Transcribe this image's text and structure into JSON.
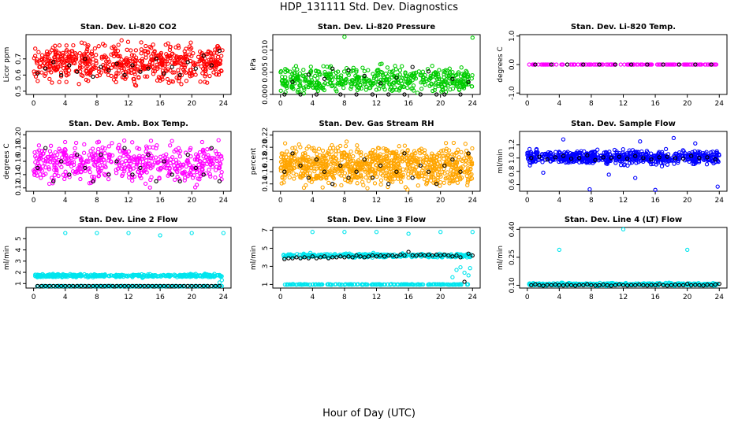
{
  "figure": {
    "title": "HDP_131111  Std. Dev. Diagnostics",
    "xlabel": "Hour of Day (UTC)"
  },
  "colors": {
    "red": "#ff0000",
    "green": "#00cc00",
    "magenta": "#ff00ff",
    "orange": "#ffa500",
    "blue": "#0000ff",
    "cyan": "#00e5ee",
    "black": "#000000"
  },
  "chart_data": [
    {
      "type": "scatter",
      "title": "Stan. Dev. Li-820 CO2",
      "ylabel": "Licor ppm",
      "xlim": [
        0,
        24
      ],
      "ylim": [
        0.48,
        0.85
      ],
      "xticks": [
        "0",
        "4",
        "8",
        "12",
        "16",
        "20",
        "24"
      ],
      "yticks": [
        "0.5",
        "0.6",
        "0.7"
      ],
      "color": "red",
      "background": {
        "count": 600,
        "band": [
          0.55,
          0.8
        ]
      },
      "series": [
        {
          "color": "black",
          "x": [
            0.5,
            1.5,
            2.5,
            3.5,
            4.5,
            5.5,
            6.5,
            7.5,
            8.5,
            9.5,
            10.5,
            11.5,
            12.5,
            13.5,
            14.5,
            15.5,
            16.5,
            17.5,
            18.5,
            19.5,
            20.5,
            21.5,
            22.5,
            23.5
          ],
          "y": [
            0.61,
            0.64,
            0.68,
            0.6,
            0.66,
            0.62,
            0.7,
            0.59,
            0.65,
            0.63,
            0.67,
            0.6,
            0.66,
            0.62,
            0.64,
            0.7,
            0.61,
            0.65,
            0.6,
            0.68,
            0.64,
            0.72,
            0.66,
            0.75
          ]
        }
      ]
    },
    {
      "type": "scatter",
      "title": "Stan. Dev. Li-820 Pressure",
      "ylabel": "kPa",
      "xlim": [
        0,
        24
      ],
      "ylim": [
        0,
        0.0135
      ],
      "xticks": [
        "0",
        "4",
        "8",
        "12",
        "16",
        "20",
        "24"
      ],
      "yticks": [
        "0.000",
        "0.005",
        "0.010"
      ],
      "color": "green",
      "background": {
        "count": 500,
        "band": [
          0.0,
          0.0065
        ]
      },
      "series": [
        {
          "color": "green",
          "x": [
            8,
            24
          ],
          "y": [
            0.013,
            0.0128
          ]
        },
        {
          "color": "black",
          "x": [
            0.5,
            1.5,
            2.5,
            3.5,
            4.5,
            5.5,
            6.5,
            7.5,
            8.5,
            9.5,
            10.5,
            11.5,
            12.5,
            13.5,
            14.5,
            15.5,
            16.5,
            17.5,
            18.5,
            19.5,
            20.5,
            21.5,
            22.5,
            23.5
          ],
          "y": [
            0.0,
            0.0028,
            0.0,
            0.0045,
            0.0,
            0.0035,
            0.0058,
            0.0,
            0.0055,
            0.0,
            0.0042,
            0.0,
            0.0025,
            0.0,
            0.0038,
            0.0,
            0.0062,
            0.0,
            0.0052,
            0.0,
            0.0,
            0.0035,
            0.0,
            0.0028
          ]
        }
      ]
    },
    {
      "type": "scatter",
      "title": "Stan. Dev. Li-820 Temp.",
      "ylabel": "degrees C",
      "xlim": [
        0,
        24
      ],
      "ylim": [
        -1.05,
        1.05
      ],
      "xticks": [
        "0",
        "4",
        "8",
        "12",
        "16",
        "20",
        "24"
      ],
      "yticks": [
        "-1.0",
        "0.0",
        "1.0"
      ],
      "color": "magenta",
      "background": {
        "count": 140,
        "band": [
          0.0,
          0.0
        ]
      },
      "series": [
        {
          "color": "black",
          "x": [
            1,
            3,
            5,
            7,
            9,
            11,
            13,
            15,
            17,
            19,
            21,
            23
          ],
          "y": [
            0,
            0,
            0,
            0,
            0,
            0,
            0,
            0,
            0,
            0,
            0,
            0
          ]
        }
      ]
    },
    {
      "type": "scatter",
      "title": "Stan. Dev. Amb. Box Temp.",
      "ylabel": "degrees C",
      "xlim": [
        0,
        24
      ],
      "ylim": [
        0.115,
        0.205
      ],
      "xticks": [
        "0",
        "4",
        "8",
        "12",
        "16",
        "20",
        "24"
      ],
      "yticks": [
        "0.12",
        "0.14",
        "0.16",
        "0.18",
        "0.20"
      ],
      "color": "magenta",
      "background": {
        "count": 520,
        "band": [
          0.125,
          0.19
        ]
      },
      "series": [
        {
          "color": "black",
          "x": [
            0.5,
            1.5,
            2.5,
            3.5,
            4.5,
            5.5,
            6.5,
            7.5,
            8.5,
            9.5,
            10.5,
            11.5,
            12.5,
            13.5,
            14.5,
            15.5,
            16.5,
            17.5,
            18.5,
            19.5,
            20.5,
            21.5,
            22.5,
            23.5
          ],
          "y": [
            0.15,
            0.18,
            0.13,
            0.16,
            0.14,
            0.17,
            0.15,
            0.13,
            0.17,
            0.14,
            0.16,
            0.18,
            0.14,
            0.15,
            0.17,
            0.13,
            0.16,
            0.14,
            0.13,
            0.17,
            0.15,
            0.14,
            0.18,
            0.13
          ]
        }
      ]
    },
    {
      "type": "scatter",
      "title": "Stan. Dev. Gas Stream RH",
      "ylabel": "percent",
      "xlim": [
        0,
        24
      ],
      "ylim": [
        0.128,
        0.226
      ],
      "xticks": [
        "0",
        "4",
        "8",
        "12",
        "16",
        "20",
        "24"
      ],
      "yticks": [
        "0.14",
        "0.16",
        "0.18",
        "0.20",
        "0.22"
      ],
      "color": "orange",
      "background": {
        "count": 900,
        "band": [
          0.135,
          0.205
        ]
      },
      "series": [
        {
          "color": "black",
          "x": [
            0.5,
            1.5,
            2.5,
            3.5,
            4.5,
            5.5,
            6.5,
            7.5,
            8.5,
            9.5,
            10.5,
            11.5,
            12.5,
            13.5,
            14.5,
            15.5,
            16.5,
            17.5,
            18.5,
            19.5,
            20.5,
            21.5,
            22.5,
            23.5
          ],
          "y": [
            0.16,
            0.19,
            0.17,
            0.15,
            0.18,
            0.16,
            0.14,
            0.17,
            0.15,
            0.16,
            0.18,
            0.15,
            0.17,
            0.14,
            0.16,
            0.19,
            0.15,
            0.17,
            0.16,
            0.14,
            0.17,
            0.18,
            0.16,
            0.19
          ]
        }
      ]
    },
    {
      "type": "scatter",
      "title": "Stan. Dev. Sample Flow",
      "ylabel": "ml/min",
      "xlim": [
        0,
        24
      ],
      "ylim": [
        0.5,
        1.4
      ],
      "xticks": [
        "0",
        "4",
        "8",
        "12",
        "16",
        "20",
        "24"
      ],
      "yticks": [
        "0.6",
        "0.8",
        "1.0",
        "1.2"
      ],
      "color": "blue",
      "background": {
        "count": 650,
        "band": [
          0.9,
          1.12
        ]
      },
      "series": [
        {
          "color": "blue",
          "x": [
            4.5,
            7.8,
            10.2,
            14.1,
            16.0,
            18.3,
            23.8,
            13.5,
            2.0,
            21.0
          ],
          "y": [
            1.28,
            0.53,
            0.75,
            1.25,
            0.52,
            1.3,
            0.57,
            0.7,
            0.78,
            1.22
          ]
        },
        {
          "color": "black",
          "x": [
            0.5,
            1.5,
            2.5,
            3.5,
            4.5,
            5.5,
            6.5,
            7.5,
            8.5,
            9.5,
            10.5,
            11.5,
            12.5,
            13.5,
            14.5,
            15.5,
            16.5,
            17.5,
            18.5,
            19.5,
            20.5,
            21.5,
            22.5,
            23.5
          ],
          "y": [
            1.0,
            1.02,
            0.98,
            1.01,
            1.03,
            0.99,
            1.0,
            1.04,
            0.97,
            1.01,
            1.0,
            1.02,
            0.99,
            1.03,
            1.0,
            0.98,
            1.01,
            1.02,
            1.0,
            0.99,
            1.03,
            1.0,
            1.01,
            0.98
          ]
        }
      ]
    },
    {
      "type": "scatter",
      "title": "Stan. Dev. Line 2 Flow",
      "ylabel": "ml/min",
      "xlim": [
        0,
        24
      ],
      "ylim": [
        0.6,
        6.0
      ],
      "xticks": [
        "0",
        "4",
        "8",
        "12",
        "16",
        "20",
        "24"
      ],
      "yticks": [
        "1",
        "2",
        "3",
        "4",
        "5"
      ],
      "color": "cyan",
      "series": [
        {
          "color": "cyan",
          "band": [
            1.5,
            1.9
          ],
          "count": 360,
          "x_range": [
            0.2,
            23.8
          ]
        },
        {
          "color": "cyan",
          "band": [
            0.75,
            0.8
          ],
          "count": 200,
          "x_range": [
            0.2,
            23.8
          ]
        },
        {
          "color": "cyan",
          "x": [
            4,
            8,
            12,
            16,
            20,
            24,
            23.5,
            23.8
          ],
          "y": [
            5.5,
            5.5,
            5.5,
            5.3,
            5.5,
            5.5,
            1.1,
            1.3
          ]
        },
        {
          "color": "black",
          "x": [
            0.5,
            1.0,
            1.5,
            2.0,
            2.5,
            3.0,
            3.5,
            4.0,
            4.5,
            5.0,
            5.5,
            6.0,
            6.5,
            7.0,
            7.5,
            8.0,
            8.5,
            9.0,
            9.5,
            10.0,
            10.5,
            11.0,
            11.5,
            12.0,
            12.5,
            13.0,
            13.5,
            14.0,
            14.5,
            15.0,
            15.5,
            16.0,
            16.5,
            17.0,
            17.5,
            18.0,
            18.5,
            19.0,
            19.5,
            20.0,
            20.5,
            21.0,
            21.5,
            22.0,
            22.5,
            23.0,
            23.5
          ],
          "y": [
            0.78,
            0.78,
            0.78,
            0.78,
            0.78,
            0.78,
            0.78,
            0.78,
            0.78,
            0.78,
            0.78,
            0.78,
            0.78,
            0.78,
            0.78,
            0.78,
            0.78,
            0.78,
            0.78,
            0.78,
            0.78,
            0.78,
            0.78,
            0.78,
            0.78,
            0.78,
            0.78,
            0.78,
            0.78,
            0.78,
            0.78,
            0.78,
            0.78,
            0.78,
            0.78,
            0.78,
            0.78,
            0.78,
            0.78,
            0.78,
            0.78,
            0.78,
            0.78,
            0.78,
            0.78,
            0.78,
            0.78
          ]
        }
      ]
    },
    {
      "type": "scatter",
      "title": "Stan. Dev. Line 3 Flow",
      "ylabel": "ml/min",
      "xlim": [
        0,
        24
      ],
      "ylim": [
        0.6,
        7.3
      ],
      "xticks": [
        "0",
        "4",
        "8",
        "12",
        "16",
        "20",
        "24"
      ],
      "yticks": [
        "1",
        "3",
        "5",
        "7"
      ],
      "color": "cyan",
      "series": [
        {
          "color": "cyan",
          "band": [
            3.9,
            4.5
          ],
          "count": 360,
          "x_range": [
            0.2,
            23.8
          ]
        },
        {
          "color": "cyan",
          "band": [
            0.95,
            1.05
          ],
          "count": 200,
          "x_range": [
            0.2,
            23.8
          ]
        },
        {
          "color": "cyan",
          "x": [
            4,
            8,
            12,
            16,
            20,
            24,
            21.5,
            22.0,
            22.5,
            23.0,
            23.5,
            23.7
          ],
          "y": [
            6.8,
            6.8,
            6.8,
            6.6,
            6.8,
            6.8,
            1.8,
            2.6,
            2.9,
            2.3,
            2.0,
            2.8
          ]
        },
        {
          "color": "black",
          "x": [
            0.5,
            1.0,
            1.5,
            2.0,
            2.5,
            3.0,
            3.5,
            4.0,
            4.5,
            5.0,
            5.5,
            6.0,
            6.5,
            7.0,
            7.5,
            8.0,
            8.5,
            9.0,
            9.5,
            10.0,
            10.5,
            11.0,
            11.5,
            12.0,
            12.5,
            13.0,
            13.5,
            14.0,
            14.5,
            15.0,
            15.5,
            16.0,
            16.5,
            17.0,
            17.5,
            18.0,
            18.5,
            19.0,
            19.5,
            20.0,
            20.5,
            21.0,
            21.5,
            22.0,
            22.5,
            23.0,
            23.5,
            24.0
          ],
          "y": [
            3.8,
            3.9,
            3.9,
            4.0,
            3.9,
            4.0,
            3.9,
            4.1,
            3.9,
            4.0,
            4.1,
            3.9,
            4.0,
            4.0,
            4.1,
            4.0,
            4.1,
            4.0,
            4.2,
            4.1,
            4.0,
            4.1,
            4.2,
            4.1,
            4.2,
            4.1,
            4.2,
            4.2,
            4.1,
            4.3,
            4.2,
            4.6,
            4.2,
            4.2,
            4.3,
            4.2,
            4.3,
            4.2,
            4.3,
            4.2,
            4.3,
            4.2,
            4.1,
            4.2,
            4.0,
            1.3,
            4.4,
            4.2
          ]
        }
      ]
    },
    {
      "type": "scatter",
      "title": "Stan. Dev. Line 4 (LT) Flow",
      "ylabel": "ml/min",
      "xlim": [
        0,
        24
      ],
      "ylim": [
        0.085,
        0.41
      ],
      "xticks": [
        "0",
        "4",
        "8",
        "12",
        "16",
        "20",
        "24"
      ],
      "yticks": [
        "0.10",
        "0.25",
        "0.40"
      ],
      "color": "cyan",
      "series": [
        {
          "color": "cyan",
          "band": [
            0.095,
            0.115
          ],
          "count": 420,
          "x_range": [
            0.2,
            23.8
          ]
        },
        {
          "color": "cyan",
          "x": [
            4.0,
            12.0,
            20.0
          ],
          "y": [
            0.29,
            0.4,
            0.29
          ]
        },
        {
          "color": "black",
          "x": [
            0.5,
            1.0,
            1.5,
            2.0,
            2.5,
            3.0,
            3.5,
            4.0,
            4.5,
            5.0,
            5.5,
            6.0,
            6.5,
            7.0,
            7.5,
            8.0,
            8.5,
            9.0,
            9.5,
            10.0,
            10.5,
            11.0,
            11.5,
            12.0,
            12.5,
            13.0,
            13.5,
            14.0,
            14.5,
            15.0,
            15.5,
            16.0,
            16.5,
            17.0,
            17.5,
            18.0,
            18.5,
            19.0,
            19.5,
            20.0,
            20.5,
            21.0,
            21.5,
            22.0,
            22.5,
            23.0,
            23.5,
            24.0
          ],
          "y": [
            0.1,
            0.105,
            0.1,
            0.098,
            0.102,
            0.1,
            0.104,
            0.1,
            0.099,
            0.103,
            0.1,
            0.098,
            0.102,
            0.1,
            0.105,
            0.1,
            0.099,
            0.1,
            0.103,
            0.1,
            0.098,
            0.1,
            0.104,
            0.1,
            0.099,
            0.101,
            0.1,
            0.103,
            0.1,
            0.099,
            0.102,
            0.1,
            0.105,
            0.1,
            0.098,
            0.1,
            0.103,
            0.1,
            0.1,
            0.108,
            0.1,
            0.102,
            0.1,
            0.099,
            0.103,
            0.1,
            0.104,
            0.108
          ]
        }
      ]
    }
  ]
}
